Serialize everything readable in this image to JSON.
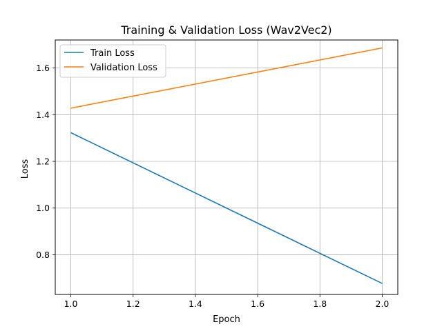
{
  "chart_data": {
    "type": "line",
    "title": "Training & Validation Loss (Wav2Vec2)",
    "xlabel": "Epoch",
    "ylabel": "Loss",
    "x": [
      1.0,
      2.0
    ],
    "xlim": [
      0.95,
      2.05
    ],
    "ylim": [
      0.63,
      1.72
    ],
    "xticks": [
      "1.0",
      "1.2",
      "1.4",
      "1.6",
      "1.8",
      "2.0"
    ],
    "yticks": [
      "0.8",
      "1.0",
      "1.2",
      "1.4",
      "1.6"
    ],
    "grid": true,
    "legend_position": "top-left",
    "series": [
      {
        "name": "Train Loss",
        "color": "#1f77b4",
        "values": [
          1.323,
          0.677
        ]
      },
      {
        "name": "Validation Loss",
        "color": "#ff7f0e",
        "values": [
          1.428,
          1.686
        ]
      }
    ]
  }
}
